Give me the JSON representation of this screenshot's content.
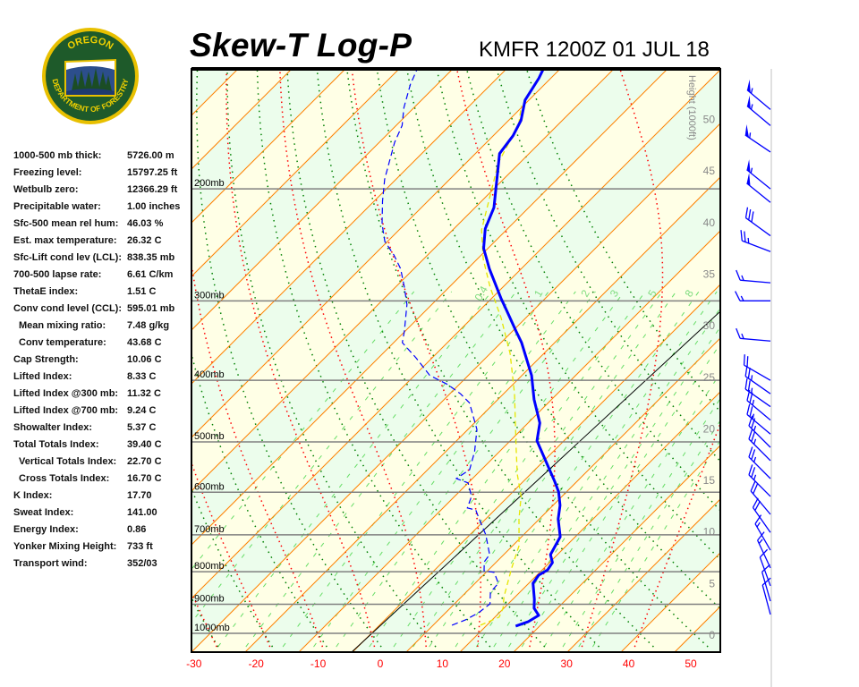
{
  "title": "Skew-T Log-P",
  "subtitle": "KMFR 1200Z 01 JUL 18",
  "logo": {
    "top_text": "OREGON",
    "bottom_text": "DEPARTMENT OF FORESTRY"
  },
  "indices": [
    {
      "label": "1000-500 mb thick:",
      "value": "5726.00 m",
      "indent": false
    },
    {
      "label": "Freezing level:",
      "value": "15797.25 ft",
      "indent": false
    },
    {
      "label": "Wetbulb zero:",
      "value": "12366.29 ft",
      "indent": false
    },
    {
      "label": "Precipitable water:",
      "value": "1.00 inches",
      "indent": false
    },
    {
      "label": "Sfc-500 mean rel hum:",
      "value": "46.03 %",
      "indent": false
    },
    {
      "label": "Est. max temperature:",
      "value": "26.32 C",
      "indent": false
    },
    {
      "label": "Sfc-Lift cond lev (LCL):",
      "value": "838.35 mb",
      "indent": false
    },
    {
      "label": "700-500 lapse rate:",
      "value": "6.61 C/km",
      "indent": false
    },
    {
      "label": "ThetaE index:",
      "value": "1.51 C",
      "indent": false
    },
    {
      "label": "Conv cond level (CCL):",
      "value": "595.01 mb",
      "indent": false
    },
    {
      "label": "Mean mixing ratio:",
      "value": "7.48 g/kg",
      "indent": true
    },
    {
      "label": "Conv temperature:",
      "value": "43.68 C",
      "indent": true
    },
    {
      "label": "Cap Strength:",
      "value": "10.06 C",
      "indent": false
    },
    {
      "label": "Lifted Index:",
      "value": "8.33 C",
      "indent": false
    },
    {
      "label": "Lifted Index @300 mb:",
      "value": "11.32 C",
      "indent": false
    },
    {
      "label": "Lifted Index @700 mb:",
      "value": "9.24 C",
      "indent": false
    },
    {
      "label": "Showalter Index:",
      "value": "5.37 C",
      "indent": false
    },
    {
      "label": "Total Totals Index:",
      "value": "39.40 C",
      "indent": false
    },
    {
      "label": "Vertical Totals Index:",
      "value": "22.70 C",
      "indent": true
    },
    {
      "label": "Cross Totals Index:",
      "value": "16.70 C",
      "indent": true
    },
    {
      "label": "K Index:",
      "value": "17.70",
      "indent": false
    },
    {
      "label": "Sweat Index:",
      "value": "141.00",
      "indent": false
    },
    {
      "label": "Energy Index:",
      "value": "0.86",
      "indent": false
    },
    {
      "label": "Yonker Mixing Height:",
      "value": "733 ft",
      "indent": false
    },
    {
      "label": "Transport wind:",
      "value": "352/03",
      "indent": false
    }
  ],
  "chart_data": {
    "type": "line",
    "subtype": "skew-t log-p",
    "x_ticks": [
      -30,
      -20,
      -10,
      0,
      10,
      20,
      30,
      40,
      50
    ],
    "x_tick_labels": [
      "-30",
      "-20",
      "-10",
      "0",
      "10",
      "20",
      "30",
      "40",
      "50"
    ],
    "xlim": [
      -30,
      50
    ],
    "pressure_scale": "log",
    "pressure_range": [
      1000,
      130
    ],
    "pressure_levels": [
      {
        "value": 200,
        "label": "200mb"
      },
      {
        "value": 300,
        "label": "300mb"
      },
      {
        "value": 400,
        "label": "400mb"
      },
      {
        "value": 500,
        "label": "500mb"
      },
      {
        "value": 600,
        "label": "600mb"
      },
      {
        "value": 700,
        "label": "700mb"
      },
      {
        "value": 800,
        "label": "800mb"
      },
      {
        "value": 900,
        "label": "900mb"
      },
      {
        "value": 1000,
        "label": "1000mb"
      }
    ],
    "height_axis": {
      "label": "Height (1000ft)",
      "ticks": [
        0,
        5,
        10,
        15,
        20,
        25,
        30,
        35,
        40,
        45,
        50
      ]
    },
    "mixing_ratio_labels": [
      "0.4",
      "1",
      "2",
      "3",
      "5",
      "8"
    ],
    "mixing_ratio_values": [
      0.4,
      1,
      2,
      3,
      5,
      8
    ],
    "temperature": [
      [
        974,
        17.6
      ],
      [
        959,
        18.9
      ],
      [
        937,
        19.6
      ],
      [
        913,
        17.7
      ],
      [
        884,
        16.3
      ],
      [
        834,
        13.5
      ],
      [
        810,
        13.1
      ],
      [
        795,
        13.7
      ],
      [
        774,
        13.3
      ],
      [
        752,
        11.7
      ],
      [
        705,
        10.4
      ],
      [
        661,
        7.2
      ],
      [
        629,
        5.3
      ],
      [
        599,
        2.9
      ],
      [
        577,
        0.6
      ],
      [
        498,
        -8.8
      ],
      [
        467,
        -11.2
      ],
      [
        429,
        -15.9
      ],
      [
        393,
        -20.2
      ],
      [
        349,
        -27.1
      ],
      [
        335,
        -29.8
      ],
      [
        311,
        -34.6
      ],
      [
        297,
        -37.6
      ],
      [
        267,
        -44.2
      ],
      [
        248,
        -48.4
      ],
      [
        231,
        -51.3
      ],
      [
        214,
        -53.3
      ],
      [
        176,
        -61.1
      ],
      [
        165,
        -61.8
      ],
      [
        156,
        -63.0
      ],
      [
        145,
        -65.6
      ],
      [
        134,
        -66.9
      ],
      [
        130,
        -67.6
      ]
    ],
    "dewpoint": [
      [
        971,
        7.2
      ],
      [
        953,
        8.5
      ],
      [
        928,
        9.5
      ],
      [
        899,
        9.9
      ],
      [
        862,
        8.1
      ],
      [
        834,
        7.9
      ],
      [
        802,
        5.5
      ],
      [
        797,
        3.6
      ],
      [
        772,
        2.2
      ],
      [
        752,
        1.9
      ],
      [
        700,
        -1.9
      ],
      [
        661,
        -5.5
      ],
      [
        640,
        -7.5
      ],
      [
        635,
        -9.2
      ],
      [
        609,
        -10.4
      ],
      [
        580,
        -13.1
      ],
      [
        571,
        -15.7
      ],
      [
        553,
        -15.0
      ],
      [
        518,
        -17.1
      ],
      [
        478,
        -20.3
      ],
      [
        434,
        -25.8
      ],
      [
        420,
        -28.7
      ],
      [
        406,
        -32.3
      ],
      [
        393,
        -36.6
      ],
      [
        369,
        -41.6
      ],
      [
        349,
        -46.3
      ],
      [
        335,
        -47.8
      ],
      [
        304,
        -51.7
      ],
      [
        285,
        -55.0
      ],
      [
        267,
        -58.5
      ],
      [
        254,
        -61.8
      ],
      [
        242,
        -65.4
      ],
      [
        227,
        -68.7
      ],
      [
        209,
        -72.3
      ],
      [
        193,
        -75.5
      ],
      [
        169,
        -79.8
      ],
      [
        159,
        -81.3
      ],
      [
        149,
        -83.9
      ],
      [
        137,
        -86.6
      ],
      [
        130,
        -87.9
      ]
    ],
    "parcel": [
      [
        971,
        11.8
      ],
      [
        943,
        13.5
      ],
      [
        913,
        12.7
      ],
      [
        876,
        11.0
      ],
      [
        789,
        7.6
      ],
      [
        728,
        5.2
      ],
      [
        661,
        0.9
      ],
      [
        609,
        -2.4
      ],
      [
        562,
        -6.6
      ],
      [
        510,
        -11.1
      ],
      [
        420,
        -20.0
      ],
      [
        363,
        -27.2
      ],
      [
        319,
        -34.4
      ],
      [
        285,
        -41.2
      ],
      [
        258,
        -46.7
      ],
      [
        232,
        -51.7
      ],
      [
        182,
        -59.8
      ],
      [
        158,
        -62.8
      ],
      [
        148,
        -65.3
      ]
    ],
    "winds": [
      {
        "p": 150,
        "dir": 310,
        "spd": 55
      },
      {
        "p": 159,
        "dir": 310,
        "spd": 55
      },
      {
        "p": 175,
        "dir": 304,
        "spd": 55
      },
      {
        "p": 200,
        "dir": 309,
        "spd": 55
      },
      {
        "p": 210,
        "dir": 309,
        "spd": 50
      },
      {
        "p": 237,
        "dir": 306,
        "spd": 30
      },
      {
        "p": 251,
        "dir": 291,
        "spd": 25
      },
      {
        "p": 281,
        "dir": 275,
        "spd": 15
      },
      {
        "p": 300,
        "dir": 270,
        "spd": 15
      },
      {
        "p": 347,
        "dir": 275,
        "spd": 15
      },
      {
        "p": 400,
        "dir": 300,
        "spd": 20
      },
      {
        "p": 420,
        "dir": 305,
        "spd": 25
      },
      {
        "p": 440,
        "dir": 305,
        "spd": 25
      },
      {
        "p": 462,
        "dir": 310,
        "spd": 25
      },
      {
        "p": 486,
        "dir": 310,
        "spd": 25
      },
      {
        "p": 510,
        "dir": 315,
        "spd": 25
      },
      {
        "p": 535,
        "dir": 315,
        "spd": 25
      },
      {
        "p": 571,
        "dir": 315,
        "spd": 25
      },
      {
        "p": 609,
        "dir": 315,
        "spd": 25
      },
      {
        "p": 650,
        "dir": 320,
        "spd": 20
      },
      {
        "p": 694,
        "dir": 325,
        "spd": 20
      },
      {
        "p": 740,
        "dir": 330,
        "spd": 15
      },
      {
        "p": 789,
        "dir": 335,
        "spd": 15
      },
      {
        "p": 842,
        "dir": 340,
        "spd": 10
      },
      {
        "p": 890,
        "dir": 344,
        "spd": 10
      },
      {
        "p": 934,
        "dir": 345,
        "spd": 10
      }
    ],
    "colors": {
      "temperature": "#0000ff",
      "dewpoint": "#0000ff",
      "parcel": "#e6e600",
      "isotherms": "#ff8000",
      "dry_adiabats": "#008000",
      "moist_adiabats": "#ff0000",
      "mixing_ratio": "#66dd66",
      "pressure_lines": "#808080",
      "band_a": "#ffffe6",
      "band_b": "#ecfdec",
      "x_tick_labels": "#ff0000",
      "wind_barbs": "#0000ff"
    }
  }
}
